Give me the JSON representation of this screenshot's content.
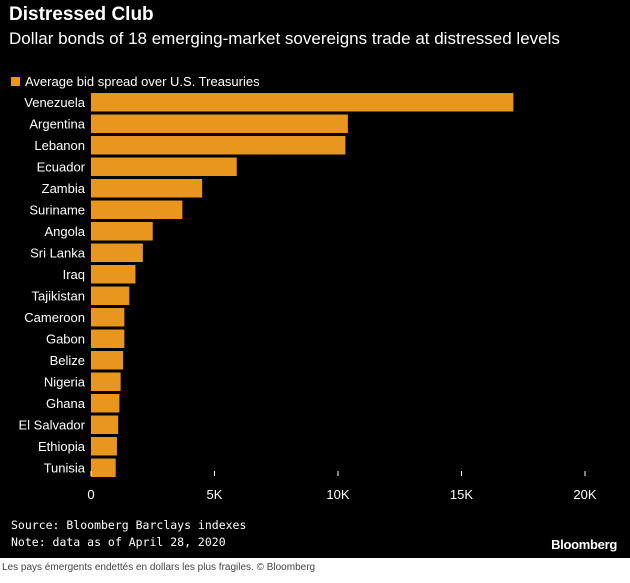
{
  "chart_data": {
    "type": "bar",
    "orientation": "horizontal",
    "title": "Distressed Club",
    "subtitle": "Dollar bonds of 18 emerging-market sovereigns trade at distressed levels",
    "series": [
      {
        "name": "Average bid spread over U.S. Treasuries",
        "color": "#e8961e",
        "values": [
          17100,
          10400,
          10300,
          5900,
          4500,
          3700,
          2500,
          2100,
          1800,
          1550,
          1350,
          1350,
          1300,
          1200,
          1150,
          1100,
          1050,
          1000
        ]
      }
    ],
    "categories": [
      "Venezuela",
      "Argentina",
      "Lebanon",
      "Ecuador",
      "Zambia",
      "Suriname",
      "Angola",
      "Sri Lanka",
      "Iraq",
      "Tajikistan",
      "Cameroon",
      "Gabon",
      "Belize",
      "Nigeria",
      "Ghana",
      "El Salvador",
      "Ethiopia",
      "Tunisia"
    ],
    "xlim": [
      0,
      20000
    ],
    "xticks": [
      0,
      5000,
      10000,
      15000,
      20000
    ],
    "xtick_labels": [
      "0",
      "5K",
      "10K",
      "15K",
      "20K"
    ],
    "xlabel": "",
    "ylabel": "",
    "legend_position": "top-left",
    "grid": false
  },
  "footer": {
    "source": "Source: Bloomberg Barclays indexes",
    "note": "Note: data as of April 28, 2020",
    "brand": "Bloomberg"
  },
  "caption": "Les pays émergents endettés en dollars les plus fragiles. © Bloomberg",
  "colors": {
    "background": "#000000",
    "bar": "#e8961e",
    "text": "#ffffff",
    "axis": "#ffffff"
  }
}
